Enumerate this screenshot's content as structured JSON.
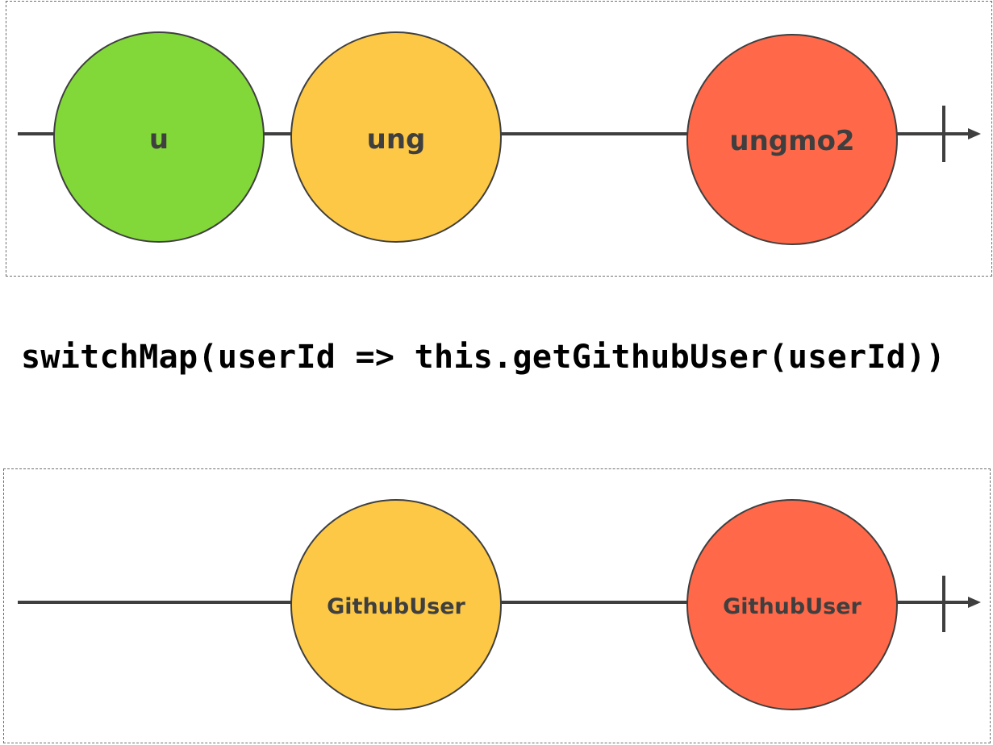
{
  "operator_text": "switchMap(userId => this.getGithubUser(userId))",
  "colors": {
    "green": "#82d839",
    "yellow": "#fdc845",
    "red": "#ff6848",
    "line": "#3f3f3f",
    "text": "#3f3f3f"
  },
  "input_stream": {
    "marbles": [
      {
        "label": "u",
        "color": "green"
      },
      {
        "label": "ung",
        "color": "yellow"
      },
      {
        "label": "ungmo2",
        "color": "red"
      }
    ]
  },
  "output_stream": {
    "marbles": [
      {
        "label": "GithubUser",
        "color": "yellow"
      },
      {
        "label": "GithubUser",
        "color": "red"
      }
    ]
  }
}
